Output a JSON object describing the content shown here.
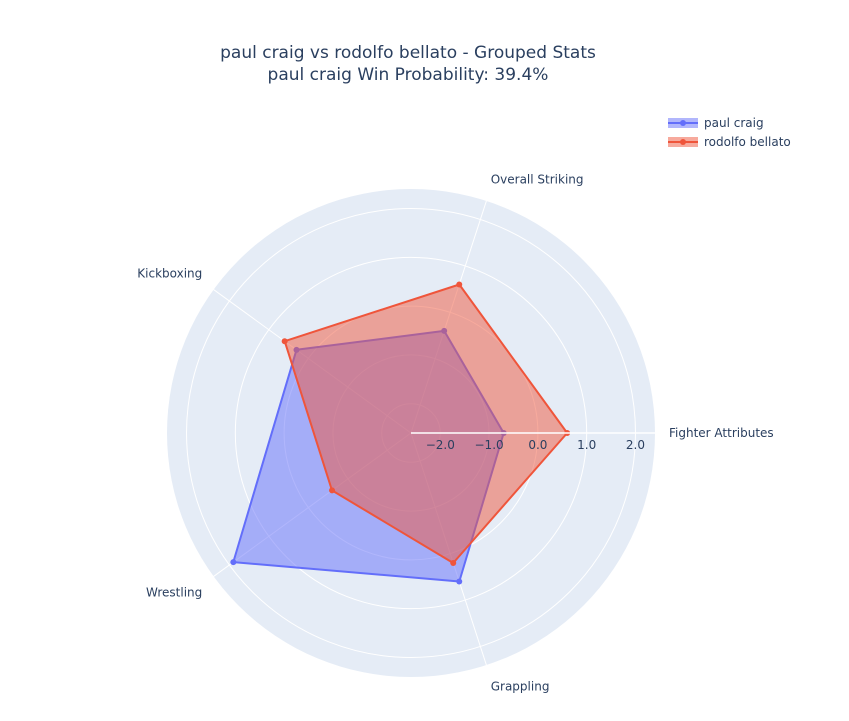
{
  "chart_data": {
    "type": "radar",
    "title_line1": "paul craig vs rodolfo bellato - Grouped Stats",
    "title_line2": "paul craig Win Probability: 39.4%",
    "categories": [
      "Fighter Attributes",
      "Overall Striking",
      "Kickboxing",
      "Wrestling",
      "Grappling"
    ],
    "radial_range": [
      -2.6,
      2.4
    ],
    "radial_ticks": [
      -2.0,
      -1.0,
      0.0,
      1.0,
      2.0
    ],
    "radial_tick_labels": [
      "−2.0",
      "−1.0",
      "0.0",
      "1.0",
      "2.0"
    ],
    "series": [
      {
        "name": "paul craig",
        "values": [
          -0.7,
          -0.4,
          0.3,
          1.9,
          0.6
        ],
        "color": "#636efa"
      },
      {
        "name": "rodolfo bellato",
        "values": [
          0.6,
          0.6,
          0.6,
          -0.6,
          0.2
        ],
        "color": "#ef553b"
      }
    ],
    "legend_position": "top-right"
  }
}
